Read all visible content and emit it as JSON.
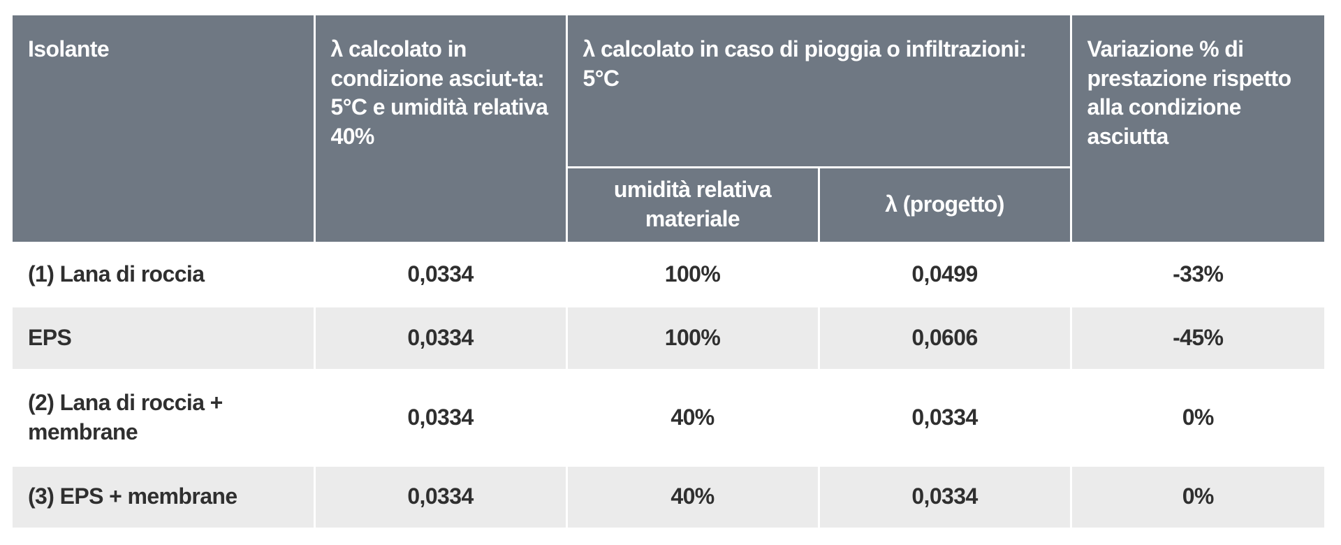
{
  "table": {
    "header": {
      "col0": "Isolante",
      "col1": "λ calcolato  in condizione asciut-ta:  5°C e umidità relativa 40%",
      "group": "λ calcolato  in caso di pioggia o infiltrazioni: 5°C",
      "sub0": "umidità relativa materiale",
      "sub1": "λ (progetto)",
      "col4": "Variazione % di prestazione rispetto alla condizione asciutta"
    },
    "rows": [
      [
        "(1) Lana di roccia",
        "0,0334",
        "100%",
        "0,0499",
        "-33%"
      ],
      [
        "EPS",
        "0,0334",
        "100%",
        "0,0606",
        "-45%"
      ],
      [
        "(2) Lana di roccia + membrane",
        "0,0334",
        "40%",
        "0,0334",
        "0%"
      ],
      [
        "(3) EPS + membrane",
        "0,0334",
        "40%",
        "0,0334",
        "0%"
      ]
    ]
  }
}
